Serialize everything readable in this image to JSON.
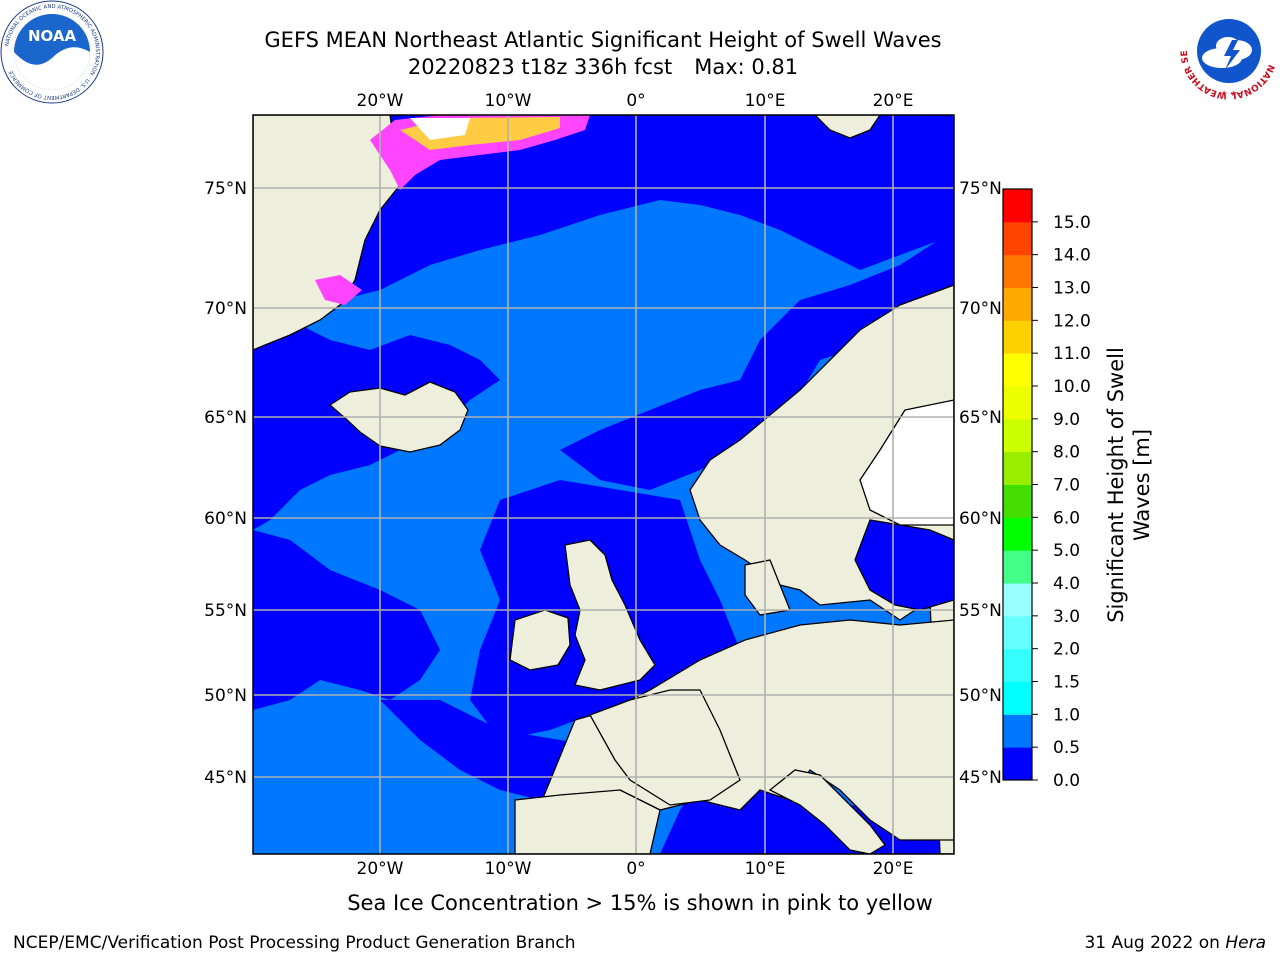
{
  "header": {
    "title_line1": "GEFS MEAN Northeast Atlantic Significant Height of Swell Waves",
    "title_date": "20220823 t18z 336h fcst",
    "title_max": "Max: 0.81"
  },
  "logos": {
    "left_name": "noaa",
    "left_text": "NOAA",
    "left_ring_text": "NATIONAL OCEANIC AND ATMOSPHERIC ADMINISTRATION · U.S. DEPARTMENT OF COMMERCE",
    "right_name": "national-weather-service",
    "right_ring_text": "NATIONAL WEATHER SERVICE"
  },
  "map": {
    "lon_labels": [
      "20°W",
      "10°W",
      "0°",
      "10°E",
      "20°E"
    ],
    "lat_labels": [
      "75°N",
      "70°N",
      "65°N",
      "60°N",
      "55°N",
      "50°N",
      "45°N"
    ],
    "colors": {
      "ocean_low": "#0000ff",
      "ocean_mid": "#0077ff",
      "land": "#eeeedd",
      "ice_pink": "#ff44ff",
      "ice_yellow": "#ffff44",
      "grid": "#b0b0b0"
    }
  },
  "colorbar": {
    "title_line1": "Significant Height of Swell",
    "title_line2": "Waves [m]",
    "tick_labels": [
      "0.0",
      "0.5",
      "1.0",
      "1.5",
      "2.0",
      "3.0",
      "4.0",
      "5.0",
      "6.0",
      "7.0",
      "8.0",
      "9.0",
      "10.0",
      "11.0",
      "12.0",
      "13.0",
      "14.0",
      "15.0"
    ],
    "colors": [
      "#0000ff",
      "#0077ff",
      "#00ffff",
      "#33ffff",
      "#66ffff",
      "#99ffff",
      "#44ff88",
      "#00ff00",
      "#44dd00",
      "#99ee00",
      "#ccff00",
      "#eeff00",
      "#ffff00",
      "#ffd000",
      "#ffaa00",
      "#ff7700",
      "#ff4400",
      "#ff0000"
    ]
  },
  "footer": {
    "subtitle": "Sea Ice Concentration > 15% is shown in pink to yellow",
    "credit_left": "NCEP/EMC/Verification Post Processing Product Generation Branch",
    "credit_right_prefix": "31 Aug 2022 on ",
    "credit_right_host": "Hera"
  }
}
